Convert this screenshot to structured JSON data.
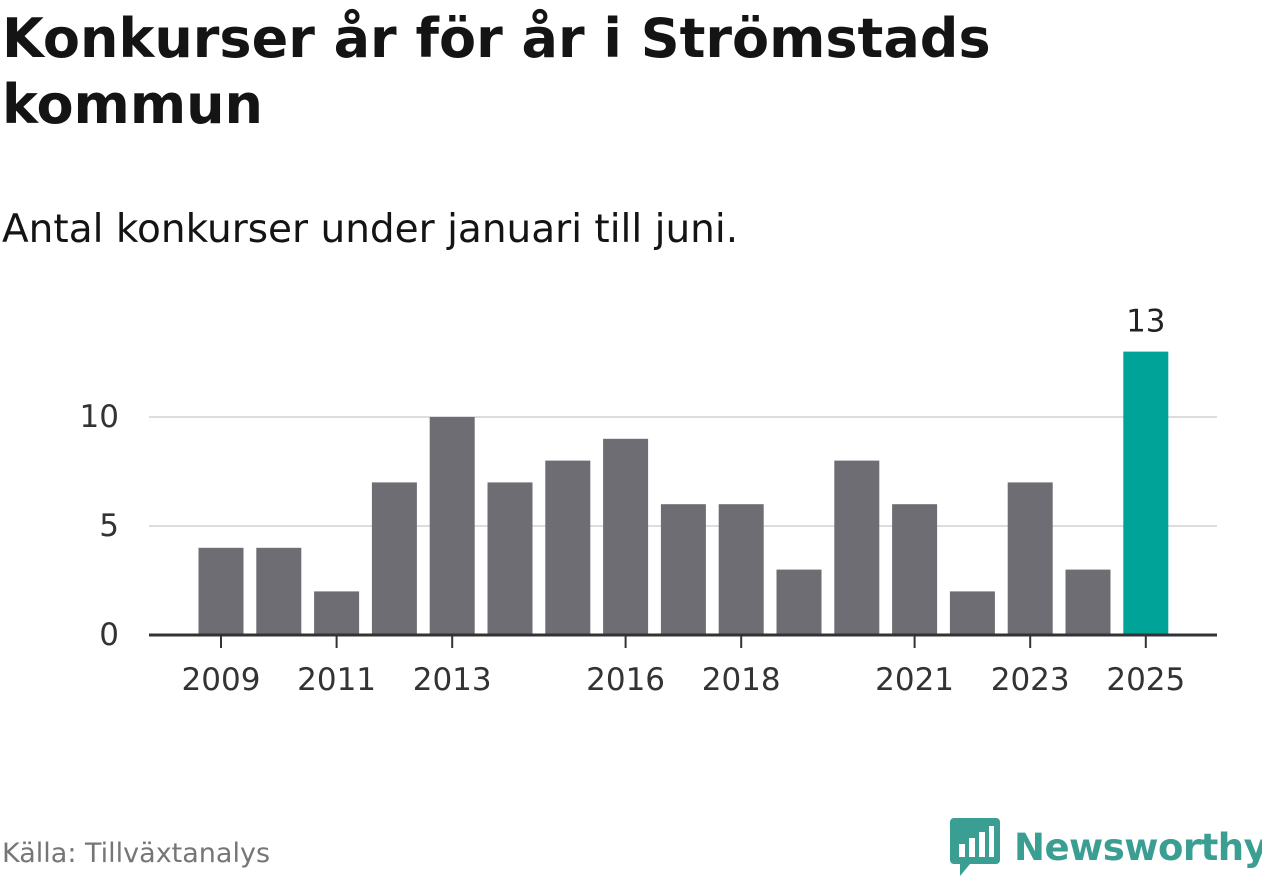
{
  "header": {
    "title": "Konkurser år för år i Strömstads kommun",
    "subtitle": "Antal konkurser under januari till juni."
  },
  "footer": {
    "source": "Källa: Tillväxtanalys",
    "brand": "Newsworthy",
    "brand_icon": "newsworthy-logo-icon"
  },
  "colors": {
    "bar": "#6e6d73",
    "highlight": "#00a398",
    "grid": "#dddddd",
    "axis": "#333333",
    "tick_text": "#333333",
    "brand": "#3a9e92"
  },
  "chart_data": {
    "type": "bar",
    "title": "",
    "xlabel": "",
    "ylabel": "",
    "categories": [
      "2009",
      "2010",
      "2011",
      "2012",
      "2013",
      "2014",
      "2015",
      "2016",
      "2017",
      "2018",
      "2019",
      "2020",
      "2021",
      "2022",
      "2023",
      "2024",
      "2025"
    ],
    "values": [
      4,
      4,
      2,
      7,
      10,
      7,
      8,
      9,
      6,
      6,
      3,
      8,
      6,
      2,
      7,
      3,
      13
    ],
    "x_tick_labels": [
      "2009",
      "2011",
      "2013",
      "2016",
      "2018",
      "2021",
      "2023",
      "2025"
    ],
    "y_ticks": [
      0,
      5,
      10
    ],
    "ylim": [
      0,
      13
    ],
    "highlight_category": "2025",
    "highlight_label": "13",
    "grid": true,
    "legend": "none"
  }
}
